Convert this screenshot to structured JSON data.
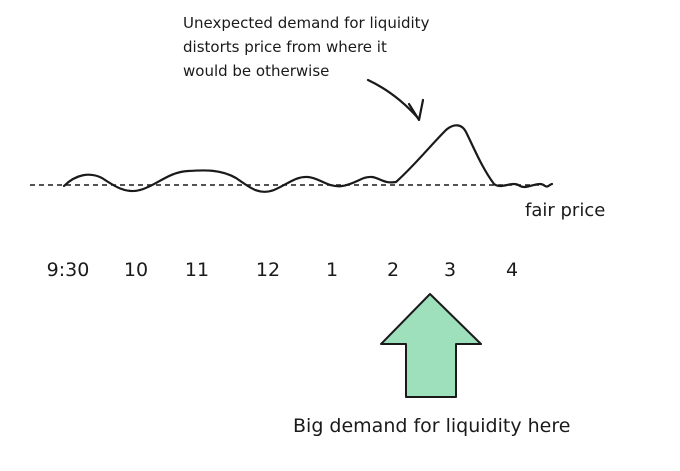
{
  "annotation": {
    "lines": [
      "Unexpected demand for liquidity",
      "distorts price from where it",
      "would be otherwise"
    ]
  },
  "fair_price_label": "fair price",
  "time_labels": [
    "9:30",
    "10",
    "11",
    "12",
    "1",
    "2",
    "3",
    "4"
  ],
  "bottom_label": "Big demand for liquidity here",
  "colors": {
    "ink": "#1a1a1a",
    "arrow_fill": "#9ee0bc",
    "arrow_stroke": "#1a1a1a"
  }
}
